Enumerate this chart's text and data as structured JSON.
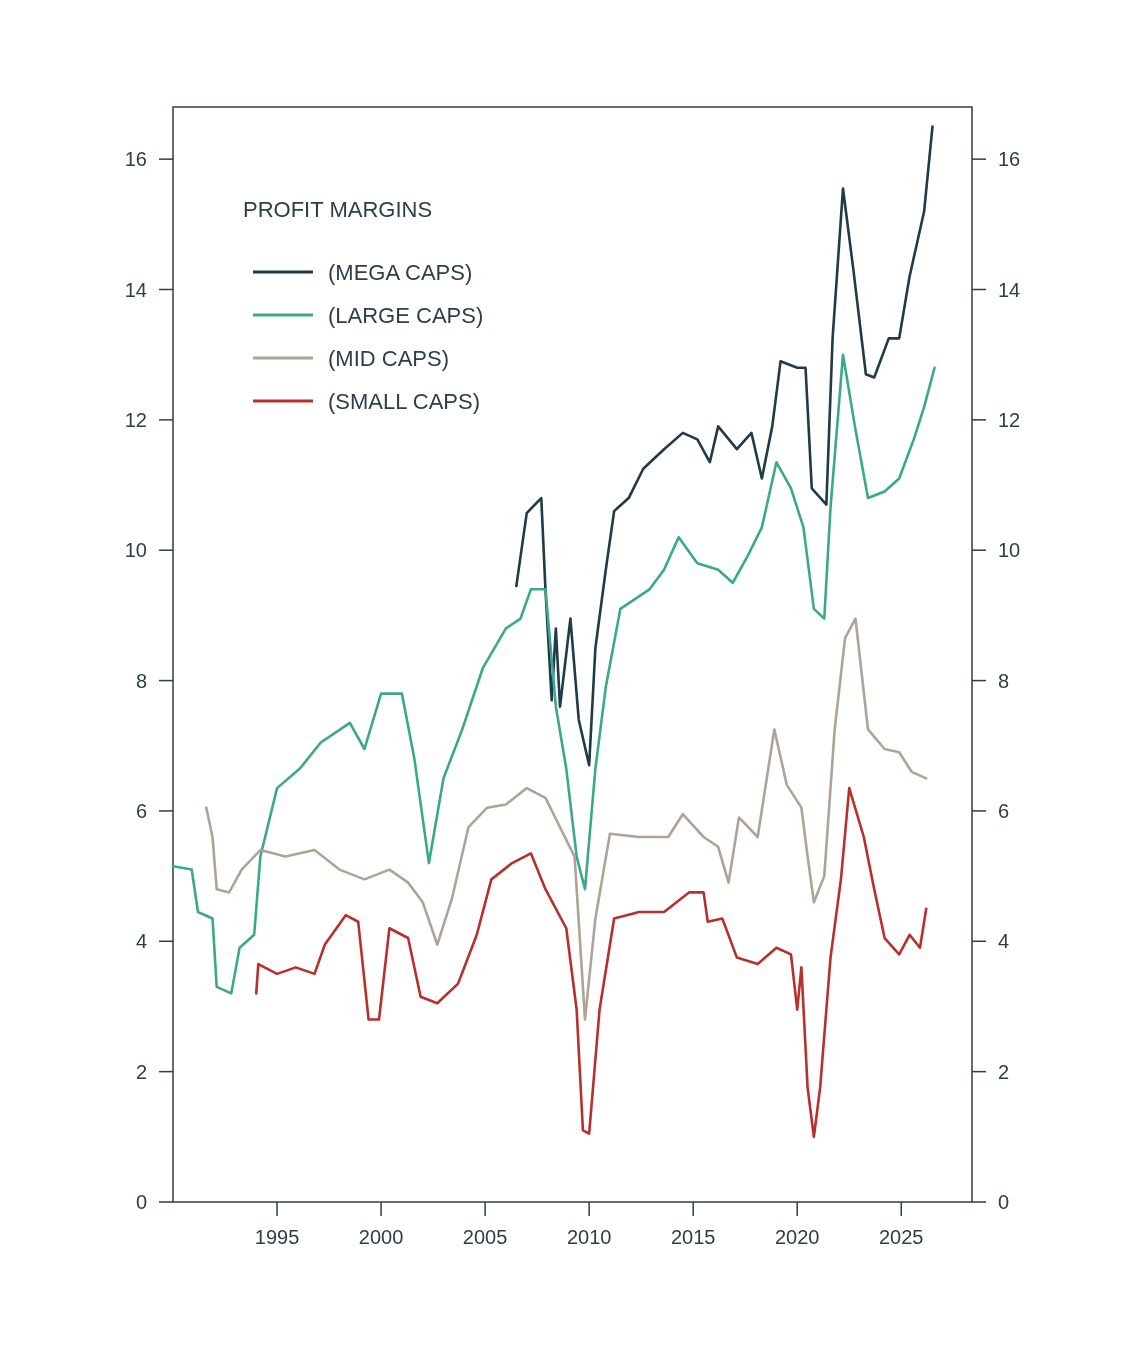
{
  "chart_data": {
    "type": "line",
    "legend_title": "PROFIT MARGINS",
    "legend": "top left",
    "grid": false,
    "xlim": [
      1990,
      2028.4
    ],
    "xticks": [
      1995,
      2000,
      2005,
      2010,
      2015,
      2020,
      2025
    ],
    "ylim": [
      0,
      16.8
    ],
    "yticks": [
      0,
      2,
      4,
      6,
      8,
      10,
      12,
      14,
      16
    ],
    "y2lim": [
      0,
      16.8
    ],
    "y2ticks": [
      0,
      2,
      4,
      6,
      8,
      10,
      12,
      14,
      16
    ],
    "series": [
      {
        "name": "(MEGA CAPS)",
        "color": "#1f3a4a",
        "x": [
          2006.5,
          2007.0,
          2007.7,
          2007.9,
          2008.2,
          2008.4,
          2008.6,
          2009.1,
          2009.5,
          2010.0,
          2010.3,
          2010.8,
          2011.2,
          2011.9,
          2012.6,
          2013.6,
          2014.5,
          2015.2,
          2015.8,
          2016.2,
          2017.1,
          2017.8,
          2018.3,
          2018.8,
          2019.2,
          2020.0,
          2020.4,
          2020.7,
          2021.4,
          2021.7,
          2022.2,
          2022.7,
          2023.3,
          2023.7,
          2024.4,
          2024.9,
          2025.4,
          2026.1,
          2026.5
        ],
        "values": [
          9.45,
          10.57,
          10.8,
          9.4,
          7.7,
          8.8,
          7.6,
          8.95,
          7.4,
          6.7,
          8.5,
          9.7,
          10.6,
          10.8,
          11.25,
          11.55,
          11.8,
          11.7,
          11.35,
          11.9,
          11.55,
          11.8,
          11.1,
          11.9,
          12.9,
          12.8,
          12.8,
          10.95,
          10.7,
          13.25,
          15.55,
          14.3,
          12.7,
          12.65,
          13.25,
          13.25,
          14.2,
          15.2,
          16.5
        ]
      },
      {
        "name": "(LARGE CAPS)",
        "color": "#3aa98a",
        "x": [
          1990.0,
          1990.9,
          1991.2,
          1991.9,
          1992.1,
          1992.8,
          1993.2,
          1993.9,
          1994.2,
          1995.0,
          1996.1,
          1997.1,
          1998.5,
          1999.2,
          2000.0,
          2001.0,
          2001.6,
          2002.3,
          2003.0,
          2003.9,
          2004.9,
          2006.0,
          2006.7,
          2007.2,
          2007.9,
          2008.4,
          2008.9,
          2009.4,
          2009.8,
          2010.3,
          2010.8,
          2011.5,
          2012.9,
          2013.6,
          2014.3,
          2015.2,
          2016.2,
          2016.9,
          2017.6,
          2018.3,
          2019.0,
          2019.7,
          2020.3,
          2020.8,
          2021.3,
          2021.6,
          2022.2,
          2022.8,
          2023.4,
          2024.2,
          2024.9,
          2025.6,
          2026.1,
          2026.6
        ],
        "values": [
          5.15,
          5.1,
          4.45,
          4.35,
          3.3,
          3.2,
          3.9,
          4.1,
          5.3,
          6.35,
          6.65,
          7.05,
          7.35,
          6.95,
          7.8,
          7.8,
          6.8,
          5.2,
          6.5,
          7.25,
          8.2,
          8.8,
          8.95,
          9.4,
          9.4,
          7.6,
          6.65,
          5.3,
          4.8,
          6.65,
          7.9,
          9.1,
          9.4,
          9.7,
          10.2,
          9.8,
          9.7,
          9.5,
          9.9,
          10.35,
          11.35,
          10.95,
          10.35,
          9.1,
          8.95,
          10.65,
          13.0,
          11.85,
          10.8,
          10.9,
          11.1,
          11.7,
          12.2,
          12.8
        ]
      },
      {
        "name": "(MID CAPS)",
        "color": "#b0a394",
        "x": [
          1991.6,
          1991.9,
          1992.1,
          1992.7,
          1993.3,
          1994.2,
          1995.4,
          1996.8,
          1998.0,
          1999.2,
          2000.4,
          2001.3,
          2002.0,
          2002.7,
          2003.4,
          2004.2,
          2005.1,
          2006.0,
          2007.0,
          2007.9,
          2008.6,
          2009.3,
          2009.8,
          2010.3,
          2011.0,
          2012.4,
          2013.8,
          2014.5,
          2015.5,
          2016.2,
          2016.7,
          2017.2,
          2018.1,
          2018.9,
          2019.5,
          2020.2,
          2020.5,
          2020.8,
          2021.3,
          2021.8,
          2022.3,
          2022.8,
          2023.4,
          2024.2,
          2024.9,
          2025.5,
          2026.2
        ],
        "values": [
          6.05,
          5.6,
          4.8,
          4.75,
          5.1,
          5.4,
          5.3,
          5.4,
          5.1,
          4.95,
          5.1,
          4.9,
          4.6,
          3.95,
          4.65,
          5.75,
          6.05,
          6.1,
          6.35,
          6.2,
          5.75,
          5.3,
          2.8,
          4.35,
          5.65,
          5.6,
          5.6,
          5.95,
          5.6,
          5.45,
          4.9,
          5.9,
          5.6,
          7.25,
          6.4,
          6.05,
          5.3,
          4.6,
          5.0,
          7.25,
          8.65,
          8.95,
          7.25,
          6.95,
          6.9,
          6.6,
          6.5
        ]
      },
      {
        "name": "(SMALL CAPS)",
        "color": "#b8302b",
        "x": [
          1994.0,
          1994.1,
          1995.0,
          1995.9,
          1996.8,
          1997.3,
          1998.3,
          1998.9,
          1999.4,
          1999.9,
          2000.4,
          2001.3,
          2001.9,
          2002.7,
          2003.7,
          2004.6,
          2005.3,
          2006.3,
          2007.2,
          2007.9,
          2008.9,
          2009.4,
          2009.7,
          2010.0,
          2010.5,
          2011.2,
          2012.4,
          2013.6,
          2014.8,
          2015.5,
          2015.7,
          2016.4,
          2017.1,
          2018.1,
          2019.0,
          2019.7,
          2020.0,
          2020.2,
          2020.5,
          2020.8,
          2021.1,
          2021.6,
          2022.1,
          2022.5,
          2023.2,
          2023.7,
          2024.2,
          2024.9,
          2025.4,
          2025.9,
          2026.2
        ],
        "values": [
          3.2,
          3.65,
          3.5,
          3.6,
          3.5,
          3.95,
          4.4,
          4.3,
          2.8,
          2.8,
          4.2,
          4.05,
          3.15,
          3.05,
          3.35,
          4.1,
          4.95,
          5.2,
          5.35,
          4.8,
          4.2,
          2.95,
          1.1,
          1.05,
          2.95,
          4.35,
          4.45,
          4.45,
          4.75,
          4.75,
          4.3,
          4.35,
          3.75,
          3.65,
          3.9,
          3.8,
          2.95,
          3.6,
          1.75,
          1.0,
          1.75,
          3.75,
          4.95,
          6.35,
          5.6,
          4.8,
          4.05,
          3.8,
          4.1,
          3.9,
          4.5
        ]
      }
    ]
  }
}
